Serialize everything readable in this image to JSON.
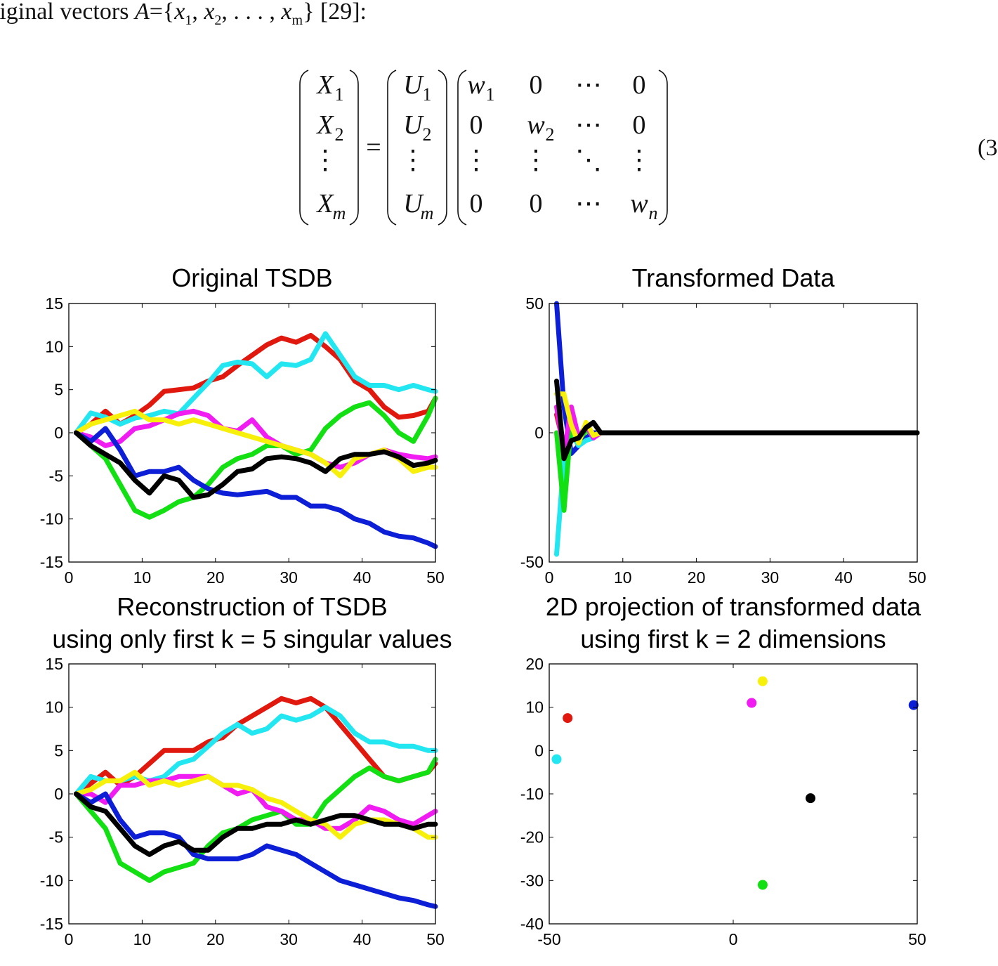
{
  "intro": {
    "prefix": "riginal vectors ",
    "set_name": "A",
    "set_open": "={",
    "x1_var": "x",
    "x1_sub": "1",
    "sep1": ", ",
    "x2_var": "x",
    "x2_sub": "2",
    "ellipsis": ", . . . , ",
    "xm_var": "x",
    "xm_sub": "m",
    "suffix": "} [29]:"
  },
  "equation": {
    "lhs": [
      [
        "X",
        "1"
      ],
      [
        "X",
        "2"
      ],
      [
        "⋮",
        ""
      ],
      [
        "X",
        "m"
      ]
    ],
    "equals": "=",
    "u": [
      [
        "U",
        "1"
      ],
      [
        "U",
        "2"
      ],
      [
        "⋮",
        ""
      ],
      [
        "U",
        "m"
      ]
    ],
    "w": [
      [
        [
          "w",
          "1"
        ],
        [
          "0",
          ""
        ],
        [
          "⋯",
          ""
        ],
        [
          "0",
          ""
        ]
      ],
      [
        [
          "0",
          ""
        ],
        [
          "w",
          "2"
        ],
        [
          "⋯",
          ""
        ],
        [
          "0",
          ""
        ]
      ],
      [
        [
          "⋮",
          ""
        ],
        [
          "⋮",
          ""
        ],
        [
          "⋱",
          ""
        ],
        [
          "⋮",
          ""
        ]
      ],
      [
        [
          "0",
          ""
        ],
        [
          "0",
          ""
        ],
        [
          "⋯",
          ""
        ],
        [
          "w",
          "n"
        ]
      ]
    ],
    "number": "(3"
  },
  "colors": {
    "red": "#e0180e",
    "cyan": "#22e6f0",
    "green": "#12e012",
    "magenta": "#f01cf2",
    "yellow": "#f7f00a",
    "blue": "#0c1ed6",
    "black": "#000000"
  },
  "chart_data": [
    {
      "type": "line",
      "title": [
        "Original TSDB"
      ],
      "xlim": [
        0,
        50
      ],
      "ylim": [
        -15,
        15
      ],
      "xticks": [
        0,
        10,
        20,
        30,
        40,
        50
      ],
      "yticks": [
        -15,
        -10,
        -5,
        0,
        5,
        10,
        15
      ],
      "xlabels": [
        "0",
        "10",
        "20",
        "30",
        "40",
        "50"
      ],
      "ylabels": [
        "-15",
        "-10",
        "-5",
        "0",
        "5",
        "10",
        "15"
      ],
      "x": [
        1,
        3,
        5,
        7,
        9,
        11,
        13,
        15,
        17,
        19,
        21,
        23,
        25,
        27,
        29,
        31,
        33,
        35,
        37,
        39,
        41,
        43,
        45,
        47,
        49,
        50
      ],
      "series": [
        {
          "color": "red",
          "values": [
            0,
            1.0,
            2.5,
            1.0,
            2.0,
            3.2,
            4.8,
            5.0,
            5.2,
            6.0,
            6.5,
            7.8,
            9.0,
            10.2,
            11.0,
            10.5,
            11.3,
            10.0,
            8.5,
            6.0,
            5.0,
            3.0,
            1.8,
            2.0,
            2.5,
            4.0
          ]
        },
        {
          "color": "cyan",
          "values": [
            0,
            2.3,
            1.8,
            1.0,
            1.7,
            2.0,
            2.5,
            2.2,
            4.0,
            5.8,
            7.8,
            8.2,
            8.0,
            6.5,
            8.0,
            7.8,
            8.5,
            11.5,
            9.0,
            6.5,
            5.5,
            5.5,
            5.0,
            5.5,
            5.0,
            4.8
          ]
        },
        {
          "color": "green",
          "values": [
            0,
            -1.5,
            -3.0,
            -6.0,
            -9.0,
            -9.8,
            -9.0,
            -8.0,
            -7.5,
            -6.0,
            -4.0,
            -3.0,
            -2.5,
            -1.5,
            -1.5,
            -2.5,
            -2.0,
            0.5,
            2.0,
            3.0,
            3.5,
            2.0,
            0.0,
            -1.0,
            2.0,
            4.0
          ]
        },
        {
          "color": "magenta",
          "values": [
            0,
            -0.5,
            -1.5,
            -1.0,
            0.5,
            0.8,
            1.5,
            2.2,
            2.5,
            2.0,
            0.5,
            0.2,
            1.5,
            -0.5,
            -1.5,
            -2.0,
            -2.5,
            -3.5,
            -4.0,
            -3.5,
            -2.5,
            -2.0,
            -2.5,
            -2.8,
            -3.0,
            -2.8
          ]
        },
        {
          "color": "yellow",
          "values": [
            0,
            1.0,
            1.5,
            2.0,
            2.5,
            1.5,
            1.5,
            1.0,
            1.5,
            1.0,
            0.5,
            0.0,
            -0.5,
            -1.0,
            -1.5,
            -2.0,
            -2.5,
            -3.5,
            -5.0,
            -3.0,
            -2.5,
            -2.0,
            -3.0,
            -4.5,
            -4.0,
            -4.0
          ]
        },
        {
          "color": "blue",
          "values": [
            0,
            -1.0,
            0.5,
            -2.0,
            -5.0,
            -4.5,
            -4.5,
            -4.0,
            -5.5,
            -6.5,
            -7.0,
            -7.2,
            -7.0,
            -6.8,
            -7.5,
            -7.5,
            -8.5,
            -8.5,
            -9.0,
            -10.0,
            -10.5,
            -11.5,
            -12.0,
            -12.2,
            -12.8,
            -13.2
          ]
        },
        {
          "color": "black",
          "values": [
            0,
            -1.5,
            -2.5,
            -3.5,
            -5.5,
            -7.0,
            -5.0,
            -5.5,
            -7.5,
            -7.2,
            -6.0,
            -4.5,
            -4.2,
            -3.0,
            -2.8,
            -3.0,
            -3.5,
            -4.5,
            -3.0,
            -2.5,
            -2.5,
            -2.2,
            -2.8,
            -3.8,
            -3.5,
            -3.2
          ]
        }
      ]
    },
    {
      "type": "line",
      "title": [
        "Transformed Data"
      ],
      "xlim": [
        0,
        50
      ],
      "ylim": [
        -50,
        50
      ],
      "xticks": [
        0,
        10,
        20,
        30,
        40,
        50
      ],
      "yticks": [
        -50,
        0,
        50
      ],
      "xlabels": [
        "0",
        "10",
        "20",
        "30",
        "40",
        "50"
      ],
      "ylabels": [
        "-50",
        "0",
        "50"
      ],
      "x": [
        1,
        2,
        3,
        4,
        5,
        6,
        7,
        8,
        50
      ],
      "series": [
        {
          "color": "blue",
          "values": [
            50,
            10,
            -8,
            -5,
            -2,
            0,
            0,
            0,
            0
          ]
        },
        {
          "color": "cyan",
          "values": [
            -47,
            -10,
            0,
            -5,
            -3,
            -2,
            0,
            0,
            0
          ]
        },
        {
          "color": "red",
          "values": [
            7,
            -5,
            5,
            -2,
            2,
            -1,
            0,
            0,
            0
          ]
        },
        {
          "color": "green",
          "values": [
            0,
            -30,
            4,
            -3,
            1,
            -1,
            0,
            0,
            0
          ]
        },
        {
          "color": "magenta",
          "values": [
            10,
            -8,
            10,
            -2,
            3,
            -2,
            0,
            0,
            0
          ]
        },
        {
          "color": "yellow",
          "values": [
            15,
            15,
            3,
            -4,
            4,
            -1,
            0,
            0,
            0
          ]
        },
        {
          "color": "black",
          "values": [
            20,
            -10,
            -3,
            -2,
            2,
            4,
            0,
            0,
            0
          ]
        }
      ]
    },
    {
      "type": "line",
      "title": [
        "Reconstruction of TSDB",
        "using only first k = 5 singular values"
      ],
      "xlim": [
        0,
        50
      ],
      "ylim": [
        -15,
        15
      ],
      "xticks": [
        0,
        10,
        20,
        30,
        40,
        50
      ],
      "yticks": [
        -15,
        -10,
        -5,
        0,
        5,
        10,
        15
      ],
      "xlabels": [
        "0",
        "10",
        "20",
        "30",
        "40",
        "50"
      ],
      "ylabels": [
        "-15",
        "-10",
        "-5",
        "0",
        "5",
        "10",
        "15"
      ],
      "x": [
        1,
        3,
        5,
        7,
        9,
        11,
        13,
        15,
        17,
        19,
        21,
        23,
        25,
        27,
        29,
        31,
        33,
        35,
        37,
        39,
        41,
        43,
        45,
        47,
        49,
        50
      ],
      "series": [
        {
          "color": "red",
          "values": [
            0,
            1.2,
            2.5,
            1.0,
            2.0,
            3.5,
            5.0,
            5.0,
            5.0,
            6.0,
            6.5,
            8.0,
            9.0,
            10.0,
            11.0,
            10.5,
            11.0,
            10.0,
            8.0,
            6.0,
            4.0,
            2.0,
            1.5,
            2.0,
            2.5,
            3.5
          ]
        },
        {
          "color": "cyan",
          "values": [
            0,
            2.0,
            1.5,
            1.5,
            2.0,
            1.5,
            2.0,
            3.5,
            4.0,
            5.5,
            7.0,
            8.0,
            7.0,
            7.5,
            9.0,
            8.5,
            9.0,
            10.0,
            9.0,
            7.0,
            6.0,
            6.0,
            5.5,
            5.5,
            5.0,
            5.0
          ]
        },
        {
          "color": "green",
          "values": [
            0,
            -2.0,
            -4.0,
            -8.0,
            -9.0,
            -10.0,
            -9.0,
            -8.5,
            -8.0,
            -6.0,
            -4.5,
            -4.0,
            -3.0,
            -2.5,
            -2.0,
            -3.5,
            -3.5,
            -1.0,
            0.5,
            2.0,
            3.0,
            2.0,
            1.5,
            2.0,
            2.5,
            4.0
          ]
        },
        {
          "color": "magenta",
          "values": [
            0,
            0.0,
            -1.0,
            1.0,
            1.0,
            1.5,
            1.5,
            2.0,
            2.0,
            2.0,
            1.0,
            0.0,
            0.5,
            -1.5,
            -2.0,
            -3.0,
            -3.0,
            -4.0,
            -4.0,
            -3.0,
            -1.5,
            -2.0,
            -3.0,
            -3.5,
            -2.5,
            -2.0
          ]
        },
        {
          "color": "yellow",
          "values": [
            0,
            0.5,
            1.5,
            1.5,
            2.5,
            1.0,
            1.5,
            1.0,
            1.5,
            2.0,
            1.0,
            1.0,
            0.5,
            -0.5,
            -1.0,
            -2.0,
            -3.0,
            -3.5,
            -5.0,
            -3.5,
            -3.0,
            -3.0,
            -3.5,
            -4.0,
            -5.0,
            -5.0
          ]
        },
        {
          "color": "blue",
          "values": [
            0,
            -1.0,
            0.0,
            -3.0,
            -5.0,
            -4.5,
            -4.5,
            -5.0,
            -7.0,
            -7.5,
            -7.5,
            -7.5,
            -7.0,
            -6.0,
            -6.5,
            -7.0,
            -8.0,
            -9.0,
            -10.0,
            -10.5,
            -11.0,
            -11.5,
            -12.0,
            -12.3,
            -12.8,
            -13.0
          ]
        },
        {
          "color": "black",
          "values": [
            0,
            -1.5,
            -2.0,
            -4.0,
            -6.0,
            -7.0,
            -6.0,
            -5.5,
            -6.5,
            -6.5,
            -5.0,
            -4.0,
            -4.0,
            -3.5,
            -3.5,
            -3.0,
            -3.5,
            -3.0,
            -2.5,
            -2.5,
            -3.0,
            -3.5,
            -3.5,
            -4.0,
            -3.5,
            -3.5
          ]
        }
      ]
    },
    {
      "type": "scatter",
      "title": [
        "2D projection of transformed data",
        "using first k = 2 dimensions"
      ],
      "xlim": [
        -50,
        50
      ],
      "ylim": [
        -40,
        20
      ],
      "xticks": [
        -50,
        0,
        50
      ],
      "yticks": [
        -40,
        -30,
        -20,
        -10,
        0,
        10,
        20
      ],
      "xlabels": [
        "-50",
        "0",
        "50"
      ],
      "ylabels": [
        "-40",
        "-30",
        "-20",
        "-10",
        "0",
        "10",
        "20"
      ],
      "points": [
        {
          "color": "red",
          "x": -45,
          "y": 7.5
        },
        {
          "color": "cyan",
          "x": -48,
          "y": -2
        },
        {
          "color": "magenta",
          "x": 5,
          "y": 11
        },
        {
          "color": "yellow",
          "x": 8,
          "y": 16
        },
        {
          "color": "blue",
          "x": 49,
          "y": 10.5
        },
        {
          "color": "black",
          "x": 21,
          "y": -11
        },
        {
          "color": "green",
          "x": 8,
          "y": -31
        }
      ]
    }
  ]
}
